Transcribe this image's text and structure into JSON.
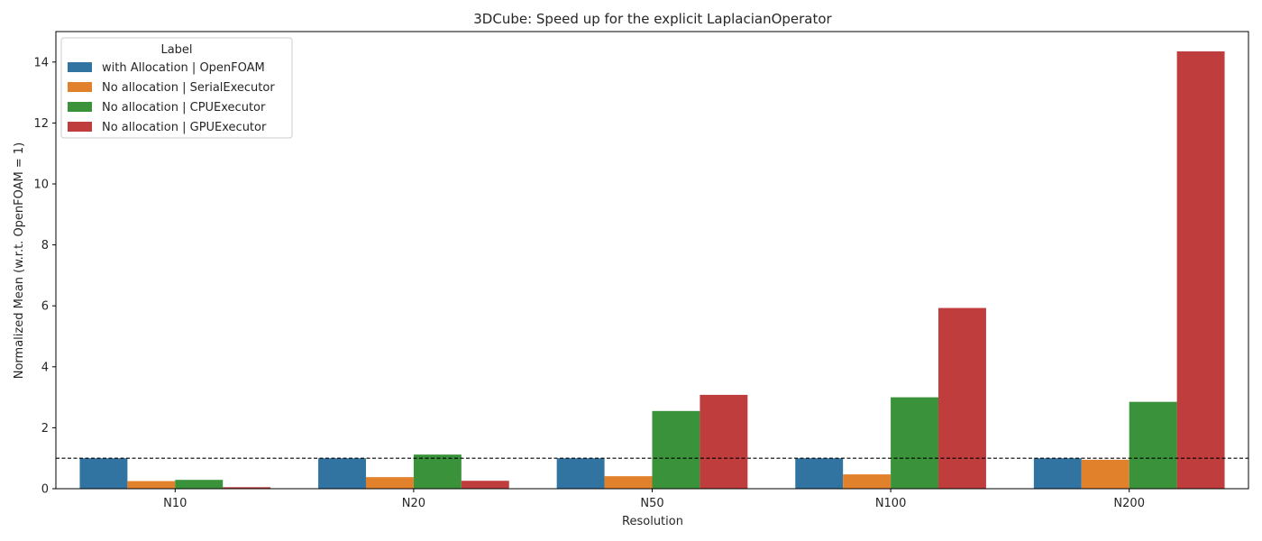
{
  "chart_data": {
    "type": "bar",
    "title": "3DCube: Speed up for the explicit LaplacianOperator",
    "xlabel": "Resolution",
    "ylabel": "Normalized Mean (w.r.t. OpenFOAM = 1)",
    "categories": [
      "N10",
      "N20",
      "N50",
      "N100",
      "N200"
    ],
    "ylim": [
      0,
      15
    ],
    "yticks": [
      0,
      2,
      4,
      6,
      8,
      10,
      12,
      14
    ],
    "reference_line": {
      "y": 1,
      "style": "dashed",
      "color": "#000000"
    },
    "legend": {
      "title": "Label",
      "placement": "top-left"
    },
    "grid": false,
    "series": [
      {
        "name": "with Allocation | OpenFOAM",
        "color": "#3274a1",
        "values": [
          1.0,
          1.0,
          1.0,
          1.0,
          1.0
        ]
      },
      {
        "name": "No allocation | SerialExecutor",
        "color": "#e1812c",
        "values": [
          0.25,
          0.38,
          0.41,
          0.47,
          0.95
        ]
      },
      {
        "name": "No allocation | CPUExecutor",
        "color": "#3a923a",
        "values": [
          0.29,
          1.12,
          2.55,
          3.0,
          2.85
        ]
      },
      {
        "name": "No allocation | GPUExecutor",
        "color": "#c03d3e",
        "values": [
          0.05,
          0.26,
          3.08,
          5.93,
          14.35
        ]
      }
    ]
  }
}
